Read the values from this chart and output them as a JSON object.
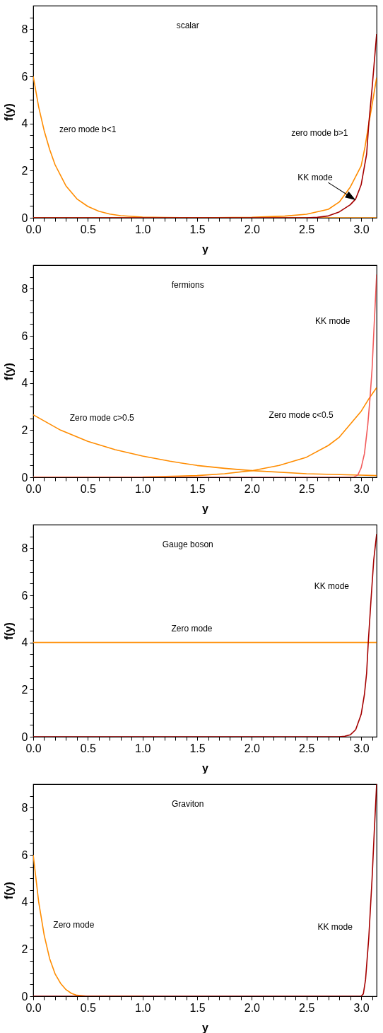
{
  "chart_data": [
    {
      "type": "line",
      "title": "scalar",
      "xlabel": "y",
      "ylabel": "f(y)",
      "xlim": [
        0,
        3.1416
      ],
      "ylim": [
        0,
        9
      ],
      "xticks": [
        {
          "value": 0,
          "label": "0.0"
        },
        {
          "value": 0.1,
          "label": null
        },
        {
          "value": 0.2,
          "label": null
        },
        {
          "value": 0.3,
          "label": null
        },
        {
          "value": 0.4,
          "label": null
        },
        0.5,
        {
          "value": 0.6,
          "label": null
        },
        {
          "value": 0.7,
          "label": null
        },
        {
          "value": 0.8,
          "label": null
        },
        {
          "value": 0.9,
          "label": null
        },
        {
          "value": 1,
          "label": "1.0"
        },
        {
          "value": 1.1,
          "label": null
        },
        {
          "value": 1.2,
          "label": null
        },
        {
          "value": 1.3,
          "label": null
        },
        {
          "value": 1.4,
          "label": null
        },
        1.5,
        {
          "value": 1.6,
          "label": null
        },
        {
          "value": 1.7,
          "label": null
        },
        {
          "value": 1.8,
          "label": null
        },
        {
          "value": 1.9,
          "label": null
        },
        {
          "value": 2,
          "label": "2.0"
        },
        {
          "value": 2.1,
          "label": null
        },
        {
          "value": 2.2,
          "label": null
        },
        {
          "value": 2.3,
          "label": null
        },
        {
          "value": 2.4,
          "label": null
        },
        2.5,
        {
          "value": 2.6,
          "label": null
        },
        {
          "value": 2.7,
          "label": null
        },
        {
          "value": 2.8,
          "label": null
        },
        {
          "value": 2.9,
          "label": null
        },
        {
          "value": 3,
          "label": "3.0"
        },
        {
          "value": 3.1,
          "label": null
        }
      ],
      "yticks": [
        0,
        {
          "value": 0.5,
          "label": null
        },
        {
          "value": 1,
          "label": null
        },
        {
          "value": 1.5,
          "label": null
        },
        2,
        {
          "value": 2.5,
          "label": null
        },
        {
          "value": 3,
          "label": null
        },
        {
          "value": 3.5,
          "label": null
        },
        4,
        {
          "value": 4.5,
          "label": null
        },
        {
          "value": 5,
          "label": null
        },
        {
          "value": 5.5,
          "label": null
        },
        6,
        {
          "value": 6.5,
          "label": null
        },
        {
          "value": 7,
          "label": null
        },
        {
          "value": 7.5,
          "label": null
        },
        8,
        {
          "value": 8.5,
          "label": null
        }
      ],
      "series": [
        {
          "color": "#ff8c00",
          "x": [
            0,
            0.05,
            0.1,
            0.15,
            0.2,
            0.3,
            0.4,
            0.5,
            0.6,
            0.7,
            0.8,
            1.0,
            1.2,
            1.5,
            2.0,
            2.5,
            3.1416
          ],
          "values": [
            6,
            4.7,
            3.7,
            2.9,
            2.25,
            1.35,
            0.8,
            0.48,
            0.28,
            0.16,
            0.09,
            0.03,
            0.01,
            0,
            0,
            0,
            0
          ]
        },
        {
          "color": "#ff8c00",
          "x": [
            0,
            1.0,
            1.5,
            2.0,
            2.3,
            2.5,
            2.7,
            2.8,
            2.9,
            3.0,
            3.035,
            3.07,
            3.1,
            3.1416
          ],
          "values": [
            0,
            0,
            0,
            0.02,
            0.07,
            0.15,
            0.36,
            0.67,
            1.3,
            2.2,
            3.0,
            4.0,
            4.8,
            5.95
          ]
        },
        {
          "color": "#a50000",
          "x": [
            0,
            2.5,
            2.6,
            2.7,
            2.8,
            2.9,
            2.95,
            3.0,
            3.05,
            3.07,
            3.1,
            3.1416
          ],
          "values": [
            0,
            0,
            0.02,
            0.08,
            0.25,
            0.55,
            0.8,
            1.4,
            2.7,
            4.0,
            5.5,
            7.8
          ]
        }
      ],
      "annotations": [
        "zero mode b<1",
        "zero mode b>1",
        "KK mode"
      ]
    },
    {
      "type": "line",
      "title": "fermions",
      "xlabel": "y",
      "ylabel": "f(y)",
      "xlim": [
        0,
        3.1416
      ],
      "ylim": [
        0,
        9
      ],
      "xticks": [
        {
          "value": 0,
          "label": "0.0"
        },
        {
          "value": 0.1,
          "label": null
        },
        {
          "value": 0.2,
          "label": null
        },
        {
          "value": 0.3,
          "label": null
        },
        {
          "value": 0.4,
          "label": null
        },
        0.5,
        {
          "value": 0.6,
          "label": null
        },
        {
          "value": 0.7,
          "label": null
        },
        {
          "value": 0.8,
          "label": null
        },
        {
          "value": 0.9,
          "label": null
        },
        {
          "value": 1,
          "label": "1.0"
        },
        {
          "value": 1.1,
          "label": null
        },
        {
          "value": 1.2,
          "label": null
        },
        {
          "value": 1.3,
          "label": null
        },
        {
          "value": 1.4,
          "label": null
        },
        1.5,
        {
          "value": 1.6,
          "label": null
        },
        {
          "value": 1.7,
          "label": null
        },
        {
          "value": 1.8,
          "label": null
        },
        {
          "value": 1.9,
          "label": null
        },
        {
          "value": 2,
          "label": "2.0"
        },
        {
          "value": 2.1,
          "label": null
        },
        {
          "value": 2.2,
          "label": null
        },
        {
          "value": 2.3,
          "label": null
        },
        {
          "value": 2.4,
          "label": null
        },
        2.5,
        {
          "value": 2.6,
          "label": null
        },
        {
          "value": 2.7,
          "label": null
        },
        {
          "value": 2.8,
          "label": null
        },
        {
          "value": 2.9,
          "label": null
        },
        {
          "value": 3,
          "label": "3.0"
        },
        {
          "value": 3.1,
          "label": null
        }
      ],
      "yticks": [
        0,
        {
          "value": 0.5,
          "label": null
        },
        {
          "value": 1,
          "label": null
        },
        {
          "value": 1.5,
          "label": null
        },
        2,
        {
          "value": 2.5,
          "label": null
        },
        {
          "value": 3,
          "label": null
        },
        {
          "value": 3.5,
          "label": null
        },
        4,
        {
          "value": 4.5,
          "label": null
        },
        {
          "value": 5,
          "label": null
        },
        {
          "value": 5.5,
          "label": null
        },
        6,
        {
          "value": 6.5,
          "label": null
        },
        {
          "value": 7,
          "label": null
        },
        {
          "value": 7.5,
          "label": null
        },
        8,
        {
          "value": 8.5,
          "label": null
        }
      ],
      "series": [
        {
          "color": "#ff8c00",
          "x": [
            0,
            0.25,
            0.5,
            0.75,
            1.0,
            1.25,
            1.5,
            1.75,
            2.0,
            2.5,
            3.0,
            3.1416
          ],
          "values": [
            2.65,
            2.0,
            1.52,
            1.17,
            0.9,
            0.68,
            0.5,
            0.38,
            0.28,
            0.15,
            0.09,
            0.07
          ]
        },
        {
          "color": "#ff8c00",
          "x": [
            0,
            1.0,
            1.5,
            1.75,
            2.0,
            2.25,
            2.5,
            2.7,
            2.8,
            2.9,
            3.0,
            3.08,
            3.1416
          ],
          "values": [
            0,
            0.01,
            0.07,
            0.15,
            0.28,
            0.5,
            0.85,
            1.35,
            1.7,
            2.25,
            2.8,
            3.4,
            3.8
          ]
        },
        {
          "color": "#f25a5a",
          "x": [
            0,
            2.93,
            2.97,
            3.0,
            3.03,
            3.06,
            3.08,
            3.1,
            3.115,
            3.13,
            3.1416
          ],
          "values": [
            0,
            0,
            0.1,
            0.4,
            1.0,
            2.2,
            3.3,
            4.6,
            6.1,
            7.5,
            8.6
          ]
        }
      ],
      "annotations": [
        "KK mode",
        "Zero mode c>0.5",
        "Zero mode c<0.5"
      ]
    },
    {
      "type": "line",
      "title": "Gauge boson",
      "xlabel": "y",
      "ylabel": "f(y)",
      "xlim": [
        0,
        3.1416
      ],
      "ylim": [
        0,
        9
      ],
      "xticks": [
        {
          "value": 0,
          "label": "0.0"
        },
        {
          "value": 0.1,
          "label": null
        },
        {
          "value": 0.2,
          "label": null
        },
        {
          "value": 0.3,
          "label": null
        },
        {
          "value": 0.4,
          "label": null
        },
        0.5,
        {
          "value": 0.6,
          "label": null
        },
        {
          "value": 0.7,
          "label": null
        },
        {
          "value": 0.8,
          "label": null
        },
        {
          "value": 0.9,
          "label": null
        },
        {
          "value": 1,
          "label": "1.0"
        },
        {
          "value": 1.1,
          "label": null
        },
        {
          "value": 1.2,
          "label": null
        },
        {
          "value": 1.3,
          "label": null
        },
        {
          "value": 1.4,
          "label": null
        },
        1.5,
        {
          "value": 1.6,
          "label": null
        },
        {
          "value": 1.7,
          "label": null
        },
        {
          "value": 1.8,
          "label": null
        },
        {
          "value": 1.9,
          "label": null
        },
        {
          "value": 2,
          "label": "2.0"
        },
        {
          "value": 2.1,
          "label": null
        },
        {
          "value": 2.2,
          "label": null
        },
        {
          "value": 2.3,
          "label": null
        },
        {
          "value": 2.4,
          "label": null
        },
        2.5,
        {
          "value": 2.6,
          "label": null
        },
        {
          "value": 2.7,
          "label": null
        },
        {
          "value": 2.8,
          "label": null
        },
        {
          "value": 2.9,
          "label": null
        },
        {
          "value": 3,
          "label": "3.0"
        },
        {
          "value": 3.1,
          "label": null
        }
      ],
      "yticks": [
        0,
        {
          "value": 0.5,
          "label": null
        },
        {
          "value": 1,
          "label": null
        },
        {
          "value": 1.5,
          "label": null
        },
        2,
        {
          "value": 2.5,
          "label": null
        },
        {
          "value": 3,
          "label": null
        },
        {
          "value": 3.5,
          "label": null
        },
        4,
        {
          "value": 4.5,
          "label": null
        },
        {
          "value": 5,
          "label": null
        },
        {
          "value": 5.5,
          "label": null
        },
        6,
        {
          "value": 6.5,
          "label": null
        },
        {
          "value": 7,
          "label": null
        },
        {
          "value": 7.5,
          "label": null
        },
        8,
        {
          "value": 8.5,
          "label": null
        }
      ],
      "series": [
        {
          "color": "#ff8c00",
          "x": [
            0,
            3.1416
          ],
          "values": [
            4,
            4
          ]
        },
        {
          "color": "#a50000",
          "x": [
            0,
            2.8,
            2.85,
            2.9,
            2.95,
            3.0,
            3.03,
            3.05,
            3.065,
            3.09,
            3.115,
            3.1416
          ],
          "values": [
            0,
            0,
            0.02,
            0.08,
            0.3,
            0.95,
            1.8,
            2.7,
            4.0,
            5.8,
            7.5,
            8.6
          ]
        }
      ],
      "annotations": [
        "KK mode",
        "Zero mode"
      ]
    },
    {
      "type": "line",
      "title": "Graviton",
      "xlabel": "y",
      "ylabel": "f(y)",
      "xlim": [
        0,
        3.1416
      ],
      "ylim": [
        0,
        9
      ],
      "xticks": [
        {
          "value": 0,
          "label": "0.0"
        },
        {
          "value": 0.1,
          "label": null
        },
        {
          "value": 0.2,
          "label": null
        },
        {
          "value": 0.3,
          "label": null
        },
        {
          "value": 0.4,
          "label": null
        },
        0.5,
        {
          "value": 0.6,
          "label": null
        },
        {
          "value": 0.7,
          "label": null
        },
        {
          "value": 0.8,
          "label": null
        },
        {
          "value": 0.9,
          "label": null
        },
        {
          "value": 1,
          "label": "1.0"
        },
        {
          "value": 1.1,
          "label": null
        },
        {
          "value": 1.2,
          "label": null
        },
        {
          "value": 1.3,
          "label": null
        },
        {
          "value": 1.4,
          "label": null
        },
        1.5,
        {
          "value": 1.6,
          "label": null
        },
        {
          "value": 1.7,
          "label": null
        },
        {
          "value": 1.8,
          "label": null
        },
        {
          "value": 1.9,
          "label": null
        },
        {
          "value": 2,
          "label": "2.0"
        },
        {
          "value": 2.1,
          "label": null
        },
        {
          "value": 2.2,
          "label": null
        },
        {
          "value": 2.3,
          "label": null
        },
        {
          "value": 2.4,
          "label": null
        },
        2.5,
        {
          "value": 2.6,
          "label": null
        },
        {
          "value": 2.7,
          "label": null
        },
        {
          "value": 2.8,
          "label": null
        },
        {
          "value": 2.9,
          "label": null
        },
        {
          "value": 3,
          "label": "3.0"
        },
        {
          "value": 3.1,
          "label": null
        }
      ],
      "yticks": [
        0,
        {
          "value": 0.5,
          "label": null
        },
        {
          "value": 1,
          "label": null
        },
        {
          "value": 1.5,
          "label": null
        },
        2,
        {
          "value": 2.5,
          "label": null
        },
        {
          "value": 3,
          "label": null
        },
        {
          "value": 3.5,
          "label": null
        },
        4,
        {
          "value": 4.5,
          "label": null
        },
        {
          "value": 5,
          "label": null
        },
        {
          "value": 5.5,
          "label": null
        },
        6,
        {
          "value": 6.5,
          "label": null
        },
        {
          "value": 7,
          "label": null
        },
        {
          "value": 7.5,
          "label": null
        },
        8,
        {
          "value": 8.5,
          "label": null
        }
      ],
      "series": [
        {
          "color": "#ff8c00",
          "x": [
            0,
            0.025,
            0.05,
            0.1,
            0.15,
            0.2,
            0.25,
            0.3,
            0.35,
            0.4,
            0.5,
            1.0
          ],
          "values": [
            6,
            5.0,
            4.0,
            2.6,
            1.6,
            0.95,
            0.55,
            0.28,
            0.12,
            0.04,
            0,
            0
          ]
        },
        {
          "color": "#a50000",
          "x": [
            0,
            3.0,
            3.02,
            3.04,
            3.07,
            3.1,
            3.12,
            3.1416
          ],
          "values": [
            0,
            0,
            0.1,
            0.7,
            2.5,
            5.0,
            7.0,
            9.0
          ]
        }
      ],
      "annotations": [
        "Zero mode",
        "KK mode"
      ]
    }
  ]
}
